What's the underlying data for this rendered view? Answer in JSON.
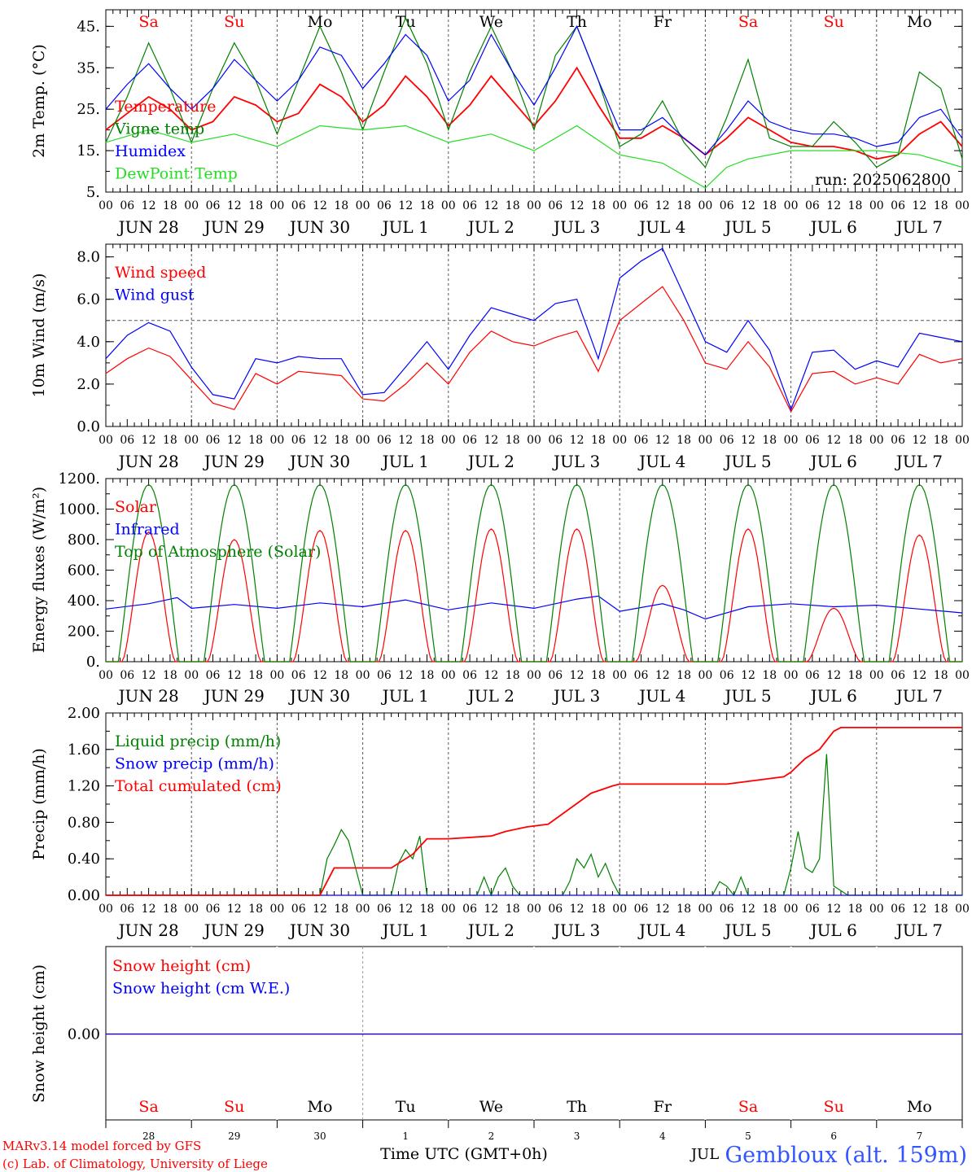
{
  "run_label": "run: 2025062800",
  "footer": {
    "model_line": "MARv3.14 model forced by GFS",
    "copyright_line": "(c) Lab. of Climatology, University of Liege",
    "time_axis_label": "Time UTC (GMT+0h)",
    "station_label": "Gembloux (alt. 159m)",
    "month_overlay": "JUL"
  },
  "days": [
    {
      "name": "Sa",
      "weekend": true,
      "date_label": "JUN 28",
      "day_number": "28"
    },
    {
      "name": "Su",
      "weekend": true,
      "date_label": "JUN 29",
      "day_number": "29"
    },
    {
      "name": "Mo",
      "weekend": false,
      "date_label": "JUN 30",
      "day_number": "30"
    },
    {
      "name": "Tu",
      "weekend": false,
      "date_label": "JUL  1",
      "day_number": "1"
    },
    {
      "name": "We",
      "weekend": false,
      "date_label": "JUL  2",
      "day_number": "2"
    },
    {
      "name": "Th",
      "weekend": false,
      "date_label": "JUL  3",
      "day_number": "3"
    },
    {
      "name": "Fr",
      "weekend": false,
      "date_label": "JUL  4",
      "day_number": "4"
    },
    {
      "name": "Sa",
      "weekend": true,
      "date_label": "JUL  5",
      "day_number": "5"
    },
    {
      "name": "Su",
      "weekend": true,
      "date_label": "JUL  6",
      "day_number": "6"
    },
    {
      "name": "Mo",
      "weekend": false,
      "date_label": "JUL  7",
      "day_number": "7"
    }
  ],
  "hour_tick_labels": [
    "00",
    "06",
    "12",
    "18"
  ],
  "hour_tick_hours": [
    0,
    6,
    12,
    18
  ],
  "colors": {
    "red": "#ff0000",
    "green": "#008000",
    "blue": "#0000ff",
    "light_green": "#22dd22",
    "axis": "#000000",
    "grid": "#555555",
    "station_blue": "#3355ff"
  },
  "chart_data": [
    {
      "id": "temperature",
      "type": "line",
      "ylabel": "2m Temp. (°C)",
      "ylim": [
        5,
        49
      ],
      "yticks": [
        5,
        15,
        25,
        35,
        45
      ],
      "ytick_labels": [
        "5.",
        "15.",
        "25.",
        "35.",
        "45."
      ],
      "x_unit": "hours since JUN 28 00 UTC",
      "legend_placement": "left",
      "series": [
        {
          "name": "Temperature",
          "color": "#ff0000",
          "x": [
            0,
            6,
            12,
            18,
            24,
            30,
            36,
            42,
            48,
            54,
            60,
            66,
            72,
            78,
            84,
            90,
            96,
            102,
            108,
            114,
            120,
            126,
            132,
            138,
            144,
            150,
            156,
            162,
            168,
            174,
            180,
            186,
            192,
            198,
            204,
            210,
            216,
            222,
            228,
            234,
            240
          ],
          "y": [
            20,
            24,
            28,
            25,
            20,
            22,
            28,
            26,
            22,
            24,
            31,
            28,
            22,
            26,
            33,
            28,
            21,
            26,
            33,
            27,
            21,
            27,
            35,
            26,
            18,
            18,
            21,
            18,
            14,
            18,
            23,
            20,
            17,
            16,
            16,
            15,
            13,
            14,
            19,
            22,
            16
          ]
        },
        {
          "name": "Vigne temp",
          "color": "#008000",
          "x": [
            0,
            6,
            12,
            18,
            24,
            30,
            36,
            42,
            48,
            54,
            60,
            66,
            72,
            78,
            84,
            90,
            96,
            102,
            108,
            114,
            120,
            126,
            132,
            138,
            144,
            150,
            156,
            162,
            168,
            174,
            180,
            186,
            192,
            198,
            204,
            210,
            216,
            222,
            228,
            234,
            240
          ],
          "y": [
            17,
            28,
            41,
            30,
            17,
            30,
            41,
            32,
            19,
            32,
            45,
            34,
            20,
            34,
            47,
            36,
            20,
            34,
            45,
            34,
            20,
            38,
            45,
            32,
            16,
            19,
            27,
            17,
            11,
            23,
            37,
            18,
            16,
            16,
            22,
            17,
            11,
            14,
            34,
            30,
            13
          ]
        },
        {
          "name": "Humidex",
          "color": "#0000ff",
          "x": [
            0,
            6,
            12,
            18,
            24,
            30,
            36,
            42,
            48,
            54,
            60,
            66,
            72,
            78,
            84,
            90,
            96,
            102,
            108,
            114,
            120,
            126,
            132,
            138,
            144,
            150,
            156,
            162,
            168,
            174,
            180,
            186,
            192,
            198,
            204,
            210,
            216,
            222,
            228,
            234,
            240
          ],
          "y": [
            25,
            31,
            36,
            30,
            25,
            30,
            37,
            32,
            27,
            32,
            40,
            38,
            30,
            36,
            43,
            38,
            27,
            32,
            43,
            34,
            26,
            35,
            45,
            32,
            20,
            20,
            23,
            18,
            14,
            20,
            27,
            22,
            20,
            19,
            19,
            18,
            16,
            17,
            23,
            25,
            18
          ]
        },
        {
          "name": "DewPoint Temp",
          "color": "#22dd22",
          "x": [
            0,
            12,
            24,
            36,
            48,
            60,
            72,
            84,
            96,
            108,
            120,
            132,
            144,
            156,
            168,
            174,
            180,
            192,
            204,
            216,
            228,
            240
          ],
          "y": [
            17,
            20,
            17,
            19,
            16,
            21,
            20,
            21,
            17,
            19,
            15,
            21,
            14,
            12,
            6,
            11,
            13,
            15,
            15,
            15,
            14,
            11
          ]
        }
      ]
    },
    {
      "id": "wind",
      "type": "line",
      "ylabel": "10m Wind (m/s)",
      "ylim": [
        0,
        8.6
      ],
      "yticks": [
        0,
        2,
        4,
        6,
        8
      ],
      "ytick_labels": [
        "0.0",
        "2.0",
        "4.0",
        "6.0",
        "8.0"
      ],
      "reference_line": 5,
      "legend_placement": "top-left",
      "series": [
        {
          "name": "Wind speed",
          "color": "#ff0000",
          "x": [
            0,
            6,
            12,
            18,
            24,
            30,
            36,
            42,
            48,
            54,
            60,
            66,
            72,
            78,
            84,
            90,
            96,
            102,
            108,
            114,
            120,
            126,
            132,
            138,
            144,
            150,
            156,
            162,
            168,
            174,
            180,
            186,
            192,
            198,
            204,
            210,
            216,
            222,
            228,
            234,
            240
          ],
          "y": [
            2.5,
            3.2,
            3.7,
            3.3,
            2.2,
            1.1,
            0.8,
            2.5,
            2.0,
            2.6,
            2.5,
            2.4,
            1.3,
            1.2,
            2.0,
            3.0,
            2.0,
            3.5,
            4.5,
            4.0,
            3.8,
            4.2,
            4.5,
            2.6,
            5.0,
            5.8,
            6.6,
            5.0,
            3.0,
            2.7,
            4.0,
            2.8,
            0.7,
            2.5,
            2.6,
            2.0,
            2.3,
            2.0,
            3.4,
            3.0,
            3.2
          ]
        },
        {
          "name": "Wind gust",
          "color": "#0000ff",
          "x": [
            0,
            6,
            12,
            18,
            24,
            30,
            36,
            42,
            48,
            54,
            60,
            66,
            72,
            78,
            84,
            90,
            96,
            102,
            108,
            114,
            120,
            126,
            132,
            138,
            144,
            150,
            156,
            162,
            168,
            174,
            180,
            186,
            192,
            198,
            204,
            210,
            216,
            222,
            228,
            234,
            240
          ],
          "y": [
            3.2,
            4.3,
            4.9,
            4.5,
            2.8,
            1.5,
            1.3,
            3.2,
            3.0,
            3.3,
            3.2,
            3.2,
            1.5,
            1.6,
            2.8,
            4.0,
            2.7,
            4.3,
            5.6,
            5.3,
            5.0,
            5.8,
            6.0,
            3.2,
            7.0,
            7.8,
            8.4,
            6.2,
            4.0,
            3.5,
            5.0,
            3.6,
            0.8,
            3.5,
            3.6,
            2.7,
            3.1,
            2.8,
            4.4,
            4.2,
            4.0
          ]
        }
      ]
    },
    {
      "id": "energy",
      "type": "line",
      "ylabel": "Energy fluxes (W/m²)",
      "ylim": [
        0,
        1200
      ],
      "yticks": [
        0,
        200,
        400,
        600,
        800,
        1000,
        1200
      ],
      "ytick_labels": [
        "0.",
        "200.",
        "400.",
        "600.",
        "800.",
        "1000.",
        "1200."
      ],
      "legend_placement": "top-left",
      "series": [
        {
          "name": "Solar",
          "color": "#ff0000",
          "daily_peak": [
            850,
            800,
            860,
            860,
            870,
            870,
            500,
            870,
            350,
            830
          ]
        },
        {
          "name": "Infrared",
          "color": "#0000ff",
          "x": [
            0,
            12,
            20,
            24,
            36,
            48,
            60,
            72,
            84,
            96,
            108,
            120,
            132,
            138,
            144,
            156,
            162,
            168,
            180,
            192,
            204,
            216,
            228,
            240
          ],
          "y": [
            345,
            380,
            420,
            350,
            375,
            350,
            385,
            360,
            405,
            340,
            385,
            350,
            410,
            430,
            330,
            380,
            340,
            280,
            360,
            380,
            360,
            370,
            345,
            320
          ]
        },
        {
          "name": "Top of Atmosphere (Solar)",
          "color": "#008000",
          "daily_peak": 1160
        }
      ]
    },
    {
      "id": "precip",
      "type": "line",
      "ylabel": "Precip (mm/h)",
      "ylim": [
        0,
        2.0
      ],
      "yticks": [
        0,
        0.4,
        0.8,
        1.2,
        1.6,
        2.0
      ],
      "ytick_labels": [
        "0.00",
        "0.40",
        "0.80",
        "1.20",
        "1.60",
        "2.00"
      ],
      "legend_placement": "top-left",
      "series": [
        {
          "name": "Liquid precip (mm/h)",
          "color": "#008000",
          "x": [
            0,
            60,
            62,
            64,
            66,
            68,
            70,
            72,
            80,
            82,
            84,
            86,
            88,
            90,
            104,
            106,
            108,
            110,
            112,
            114,
            116,
            118,
            128,
            130,
            132,
            134,
            136,
            138,
            140,
            142,
            144,
            170,
            172,
            174,
            176,
            178,
            180,
            190,
            192,
            194,
            196,
            198,
            200,
            202,
            204,
            206,
            208,
            210,
            240
          ],
          "y": [
            0,
            0,
            0.4,
            0.55,
            0.72,
            0.6,
            0.3,
            0,
            0,
            0.35,
            0.5,
            0.4,
            0.65,
            0,
            0,
            0.2,
            0,
            0.2,
            0.3,
            0.1,
            0,
            0,
            0,
            0.15,
            0.4,
            0.3,
            0.45,
            0.2,
            0.35,
            0.15,
            0,
            0,
            0.15,
            0.1,
            0,
            0.2,
            0,
            0,
            0.3,
            0.7,
            0.3,
            0.25,
            0.4,
            1.55,
            0.1,
            0.05,
            0,
            0,
            0
          ]
        },
        {
          "name": "Snow precip (mm/h)",
          "color": "#0000ff",
          "x": [
            0,
            240
          ],
          "y": [
            0,
            0
          ]
        },
        {
          "name": "Total cumulated (cm)",
          "color": "#ff0000",
          "x": [
            0,
            60,
            64,
            66,
            68,
            70,
            80,
            86,
            90,
            96,
            108,
            112,
            118,
            124,
            130,
            136,
            142,
            144,
            168,
            174,
            180,
            186,
            190,
            192,
            196,
            200,
            204,
            206,
            240
          ],
          "y": [
            0,
            0,
            0.3,
            0.3,
            0.3,
            0.3,
            0.3,
            0.45,
            0.62,
            0.62,
            0.65,
            0.7,
            0.75,
            0.78,
            0.95,
            1.12,
            1.2,
            1.22,
            1.22,
            1.22,
            1.25,
            1.28,
            1.3,
            1.35,
            1.5,
            1.6,
            1.8,
            1.84,
            1.84
          ]
        }
      ]
    },
    {
      "id": "snow",
      "type": "line",
      "ylabel": "Snow height (cm)",
      "yticks": [
        0
      ],
      "ytick_labels": [
        "0.00"
      ],
      "legend_placement": "top-left",
      "series": [
        {
          "name": "Snow height (cm)",
          "color": "#ff0000",
          "x": [
            0,
            240
          ],
          "y": [
            0,
            0
          ]
        },
        {
          "name": "Snow height (cm W.E.)",
          "color": "#0000ff",
          "x": [
            0,
            240
          ],
          "y": [
            0,
            0
          ]
        }
      ]
    }
  ]
}
